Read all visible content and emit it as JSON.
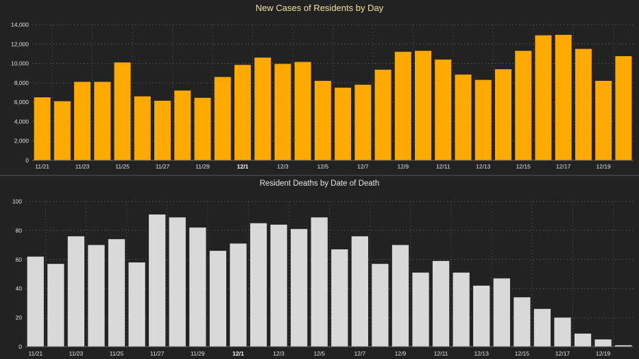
{
  "charts": {
    "cases": {
      "title": "New Cases of Residents by Day",
      "bar_color": "#FFAA00"
    },
    "deaths": {
      "title": "Resident Deaths by Date of Death",
      "bar_color": "#D9D9D9"
    }
  },
  "chart_data": [
    {
      "type": "bar",
      "title": "New Cases of Residents by Day",
      "xlabel": "",
      "ylabel": "",
      "x_ticks": [
        "11/21",
        "11/23",
        "11/25",
        "11/27",
        "11/29",
        "12/1",
        "12/3",
        "12/5",
        "12/7",
        "12/9",
        "12/11",
        "12/13",
        "12/15",
        "12/17",
        "12/19"
      ],
      "bold_tick": "12/1",
      "y_ticks": [
        "0",
        "2,000",
        "4,000",
        "6,000",
        "8,000",
        "10,000",
        "12,000",
        "14,000"
      ],
      "ylim": [
        0,
        14000
      ],
      "grid": true,
      "categories": [
        "11/21",
        "11/22",
        "11/23",
        "11/24",
        "11/25",
        "11/26",
        "11/27",
        "11/28",
        "11/29",
        "11/30",
        "12/1",
        "12/2",
        "12/3",
        "12/4",
        "12/5",
        "12/6",
        "12/7",
        "12/8",
        "12/9",
        "12/10",
        "12/11",
        "12/12",
        "12/13",
        "12/14",
        "12/15",
        "12/16",
        "12/17",
        "12/18",
        "12/19",
        "12/20"
      ],
      "values": [
        6500,
        6100,
        8100,
        8100,
        10100,
        6600,
        6150,
        7200,
        6450,
        8600,
        9850,
        10600,
        9950,
        10150,
        8200,
        7500,
        7800,
        9350,
        11200,
        11300,
        10400,
        8850,
        8300,
        9400,
        11300,
        12900,
        12950,
        11500,
        8200,
        10750
      ]
    },
    {
      "type": "bar",
      "title": "Resident Deaths by Date of Death",
      "xlabel": "",
      "ylabel": "",
      "x_ticks": [
        "11/21",
        "11/23",
        "11/25",
        "11/27",
        "11/29",
        "12/1",
        "12/3",
        "12/5",
        "12/7",
        "12/9",
        "12/11",
        "12/13",
        "12/15",
        "12/17",
        "12/19"
      ],
      "bold_tick": "12/1",
      "y_ticks": [
        "0",
        "20",
        "40",
        "60",
        "80",
        "100"
      ],
      "ylim": [
        0,
        100
      ],
      "grid": true,
      "categories": [
        "11/21",
        "11/22",
        "11/23",
        "11/24",
        "11/25",
        "11/26",
        "11/27",
        "11/28",
        "11/29",
        "11/30",
        "12/1",
        "12/2",
        "12/3",
        "12/4",
        "12/5",
        "12/6",
        "12/7",
        "12/8",
        "12/9",
        "12/10",
        "12/11",
        "12/12",
        "12/13",
        "12/14",
        "12/15",
        "12/16",
        "12/17",
        "12/18",
        "12/19",
        "12/20"
      ],
      "values": [
        62,
        57,
        76,
        70,
        74,
        58,
        91,
        89,
        82,
        66,
        71,
        85,
        84,
        81,
        89,
        67,
        76,
        57,
        70,
        51,
        59,
        51,
        42,
        47,
        34,
        26,
        20,
        9,
        5,
        1
      ]
    }
  ]
}
